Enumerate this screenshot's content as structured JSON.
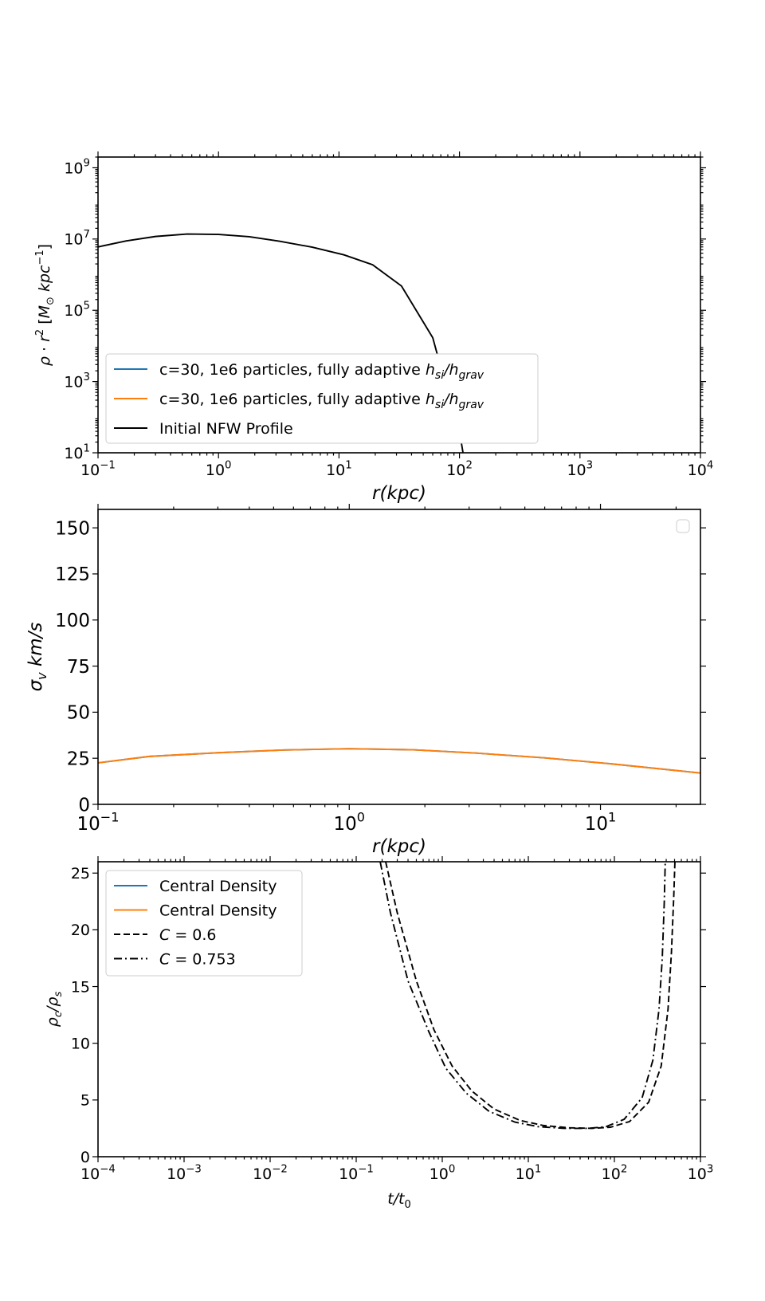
{
  "chart_data": [
    {
      "type": "line",
      "xscale": "log",
      "yscale": "log",
      "xlim": [
        0.1,
        10000
      ],
      "ylim": [
        10,
        2000000000
      ],
      "xlabel": "r(kpc)",
      "ylabel": "ρ·r² [M⊙ kpc⁻¹]",
      "x_ticks": [
        {
          "v": 0.1,
          "b": "10",
          "e": "−1"
        },
        {
          "v": 1,
          "b": "10",
          "e": "0"
        },
        {
          "v": 10,
          "b": "10",
          "e": "1"
        },
        {
          "v": 100,
          "b": "10",
          "e": "2"
        },
        {
          "v": 1000,
          "b": "10",
          "e": "3"
        },
        {
          "v": 10000,
          "b": "10",
          "e": "4"
        }
      ],
      "y_ticks": [
        {
          "v": 10,
          "b": "10",
          "e": "1"
        },
        {
          "v": 1000,
          "b": "10",
          "e": "3"
        },
        {
          "v": 100000,
          "b": "10",
          "e": "5"
        },
        {
          "v": 10000000,
          "b": "10",
          "e": "7"
        },
        {
          "v": 1000000000,
          "b": "10",
          "e": "9"
        }
      ],
      "legend_position": "lower-left",
      "series": [
        {
          "name": "c=30, 1e6 particles, fully adaptive h_si/h_grav",
          "legend_main": "c=30, 1e6 particles, fully adaptive ",
          "legend_math": "h",
          "legend_sub1": "si",
          "legend_mid": "/h",
          "legend_sub2": "grav",
          "color": "#1f77b4",
          "style": "solid",
          "x": [],
          "y": []
        },
        {
          "name": "c=30, 1e6 particles, fully adaptive h_si/h_grav",
          "legend_main": "c=30, 1e6 particles, fully adaptive ",
          "legend_math": "h",
          "legend_sub1": "si",
          "legend_mid": "/h",
          "legend_sub2": "grav",
          "color": "#ff7f0e",
          "style": "solid",
          "x": [],
          "y": []
        },
        {
          "name": "Initial NFW Profile",
          "legend_main": "Initial NFW Profile",
          "color": "#000000",
          "style": "solid",
          "x": [
            0.1,
            0.17,
            0.3,
            0.55,
            1.0,
            1.8,
            3.2,
            6.0,
            11.0,
            19.0,
            33.0,
            60.0,
            68.0,
            80.0,
            100.0,
            107.0
          ],
          "y": [
            6000000,
            8800000,
            11800000,
            13800000,
            13500000,
            11600000,
            8700000,
            5900000,
            3600000,
            1900000,
            480000,
            17000,
            3600,
            500,
            40,
            10
          ]
        }
      ]
    },
    {
      "type": "line",
      "xscale": "log",
      "yscale": "linear",
      "xlim": [
        0.1,
        25
      ],
      "ylim": [
        0,
        160
      ],
      "xlabel": "r(kpc)",
      "ylabel": "σ_v km/s",
      "x_ticks": [
        {
          "v": 0.1,
          "b": "10",
          "e": "−1"
        },
        {
          "v": 1,
          "b": "10",
          "e": "0"
        },
        {
          "v": 10,
          "b": "10",
          "e": "1"
        }
      ],
      "y_ticks": [
        0,
        25,
        50,
        75,
        100,
        125,
        150
      ],
      "legend_position": "top-right",
      "series": [
        {
          "color": "#1f77b4",
          "style": "solid",
          "x": [
            0.1,
            0.16,
            0.3,
            0.55,
            1.0,
            1.8,
            3.2,
            6.0,
            11.0,
            25.0
          ],
          "y": [
            22.5,
            26.0,
            28.0,
            29.5,
            30.2,
            29.6,
            27.8,
            25.2,
            22.0,
            17.0
          ]
        },
        {
          "color": "#ff7f0e",
          "style": "solid",
          "x": [
            0.1,
            0.16,
            0.3,
            0.55,
            1.0,
            1.8,
            3.2,
            6.0,
            11.0,
            25.0
          ],
          "y": [
            22.5,
            26.0,
            28.0,
            29.5,
            30.2,
            29.6,
            27.8,
            25.2,
            22.0,
            17.0
          ]
        }
      ]
    },
    {
      "type": "line",
      "xscale": "log",
      "yscale": "linear",
      "xlim": [
        0.0001,
        1000
      ],
      "ylim": [
        0,
        26
      ],
      "xlabel": "t/t₀",
      "ylabel": "ρc/ρs",
      "x_ticks": [
        {
          "v": 0.0001,
          "b": "10",
          "e": "−4"
        },
        {
          "v": 0.001,
          "b": "10",
          "e": "−3"
        },
        {
          "v": 0.01,
          "b": "10",
          "e": "−2"
        },
        {
          "v": 0.1,
          "b": "10",
          "e": "−1"
        },
        {
          "v": 1,
          "b": "10",
          "e": "0"
        },
        {
          "v": 10,
          "b": "10",
          "e": "1"
        },
        {
          "v": 100,
          "b": "10",
          "e": "2"
        },
        {
          "v": 1000,
          "b": "10",
          "e": "3"
        }
      ],
      "y_ticks": [
        0,
        5,
        10,
        15,
        20,
        25
      ],
      "legend_position": "top-left",
      "series": [
        {
          "name": "Central Density",
          "legend_main": "Central Density",
          "color": "#1f77b4",
          "style": "solid",
          "x": [],
          "y": []
        },
        {
          "name": "Central Density",
          "legend_main": "Central Density",
          "color": "#ff7f0e",
          "style": "solid",
          "x": [],
          "y": []
        },
        {
          "name": "C = 0.6",
          "legend_math": "C",
          "legend_main": " = 0.6",
          "color": "#000000",
          "style": "dashed",
          "x": [
            0.22,
            0.3,
            0.5,
            0.8,
            1.3,
            2.2,
            4.0,
            8.0,
            15.0,
            30.0,
            55.0,
            90.0,
            150.0,
            250.0,
            350.0,
            420.0,
            460.0,
            490.0,
            505.0
          ],
          "y": [
            26,
            21.5,
            15.5,
            11.2,
            8.0,
            5.8,
            4.2,
            3.2,
            2.75,
            2.55,
            2.5,
            2.6,
            3.1,
            4.8,
            8.0,
            13.0,
            18.0,
            23.0,
            26
          ]
        },
        {
          "name": "C = 0.753",
          "legend_math": "C",
          "legend_main": " = 0.753",
          "color": "#000000",
          "style": "dashdot",
          "x": [
            0.19,
            0.25,
            0.4,
            0.7,
            1.1,
            1.9,
            3.5,
            7.0,
            13.0,
            26.0,
            50.0,
            80.0,
            130.0,
            210.0,
            280.0,
            330.0,
            360.0,
            380.0,
            390.0
          ],
          "y": [
            26,
            21.5,
            15.5,
            11.0,
            7.8,
            5.6,
            4.0,
            3.05,
            2.65,
            2.5,
            2.5,
            2.65,
            3.3,
            5.2,
            8.5,
            13.0,
            17.5,
            22.5,
            26
          ]
        }
      ]
    }
  ]
}
